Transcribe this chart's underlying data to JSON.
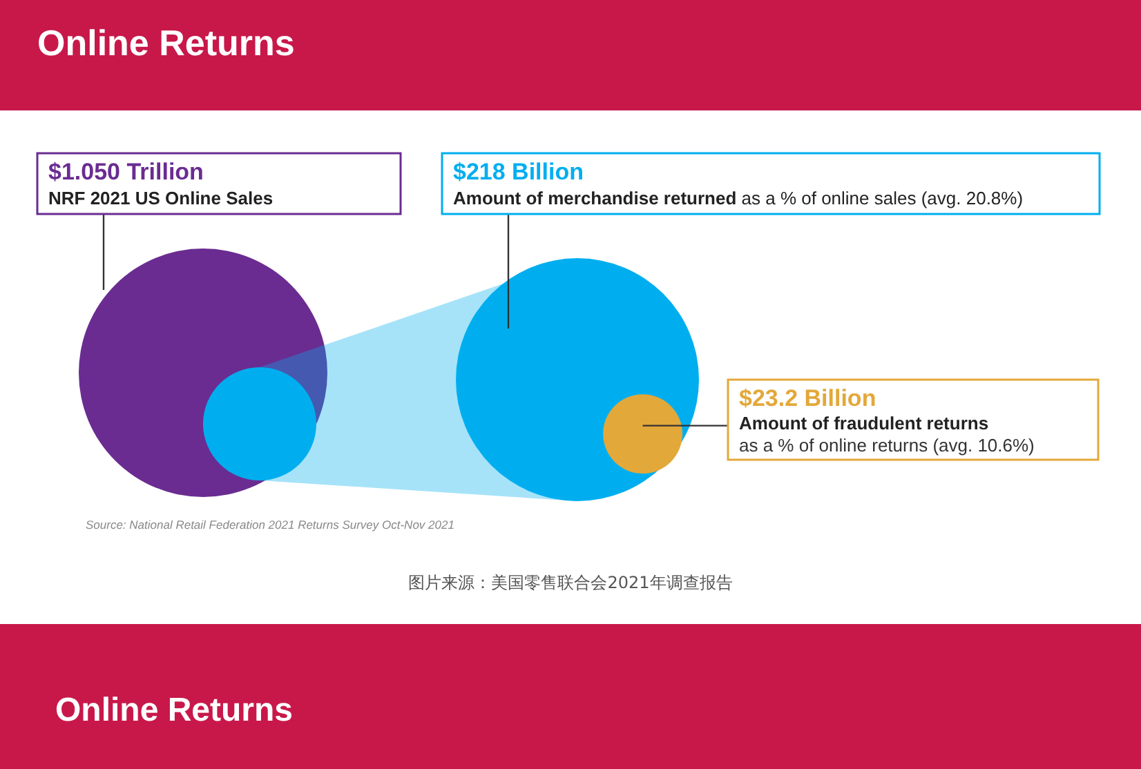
{
  "chart_data": {
    "type": "other",
    "title": "Online Returns",
    "categories": [
      "NRF 2021 US Online Sales",
      "Amount of merchandise returned",
      "Amount of fraudulent returns"
    ],
    "values": [
      1.05,
      218,
      23.2
    ],
    "value_labels": [
      "$1.050 Trillion",
      "$218 Billion",
      "$23.2 Billion"
    ],
    "colors": [
      "#6a2c91",
      "#00aeef",
      "#e3a83a"
    ],
    "annotations": [
      "Source: National Retail Federation 2021 Returns Survey Oct-Nov 2021",
      "图片来源：美国零售联合会2021年调查报告",
      "as a % of online sales (avg. 20.8%)",
      "as a % of online returns (avg. 10.6%)",
      "Online Returns"
    ]
  }
}
